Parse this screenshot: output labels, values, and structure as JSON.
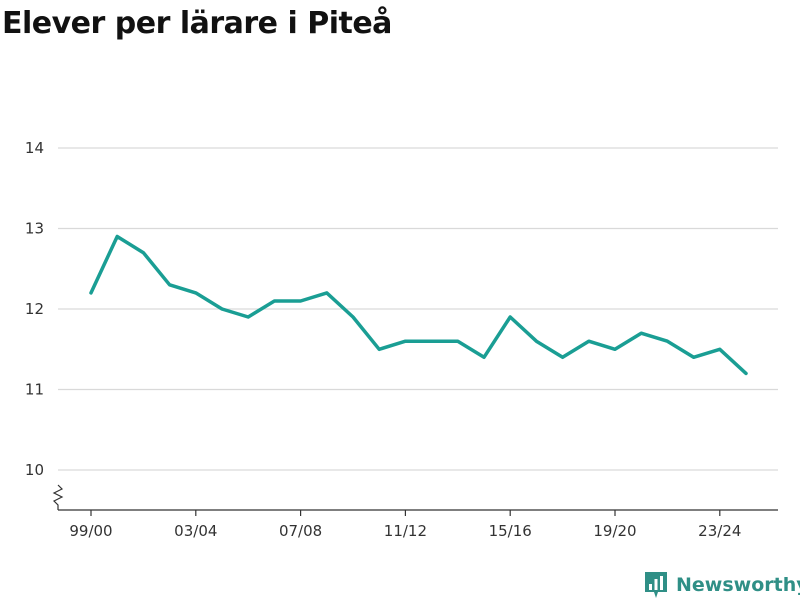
{
  "header": {
    "title": "Elever per lärare i Piteå"
  },
  "brand": {
    "name": "Newsworthy"
  },
  "colors": {
    "line": "#1a9e94",
    "grid": "#d9d9d9",
    "axis": "#333333",
    "brand": "#2f8f86"
  },
  "chart_data": {
    "type": "line",
    "title": "Elever per lärare i Piteå",
    "xlabel": "",
    "ylabel": "",
    "categories": [
      "99/00",
      "00/01",
      "01/02",
      "02/03",
      "03/04",
      "04/05",
      "05/06",
      "06/07",
      "07/08",
      "08/09",
      "09/10",
      "10/11",
      "11/12",
      "12/13",
      "13/14",
      "14/15",
      "15/16",
      "16/17",
      "17/18",
      "18/19",
      "19/20",
      "20/21",
      "21/22",
      "22/23",
      "23/24",
      "24/25"
    ],
    "x_tick_labels": [
      "99/00",
      "03/04",
      "07/08",
      "11/12",
      "15/16",
      "19/20",
      "23/24"
    ],
    "y_ticks": [
      10,
      11,
      12,
      13,
      14
    ],
    "ylim": [
      9.5,
      14
    ],
    "y_axis_break": true,
    "grid": true,
    "series": [
      {
        "values": [
          12.2,
          12.9,
          12.7,
          12.3,
          12.2,
          12.0,
          11.9,
          12.1,
          12.1,
          12.2,
          11.9,
          11.5,
          11.6,
          11.6,
          11.6,
          11.4,
          11.9,
          11.6,
          11.4,
          11.6,
          11.5,
          11.7,
          11.6,
          11.4,
          11.5,
          11.2
        ]
      }
    ]
  }
}
